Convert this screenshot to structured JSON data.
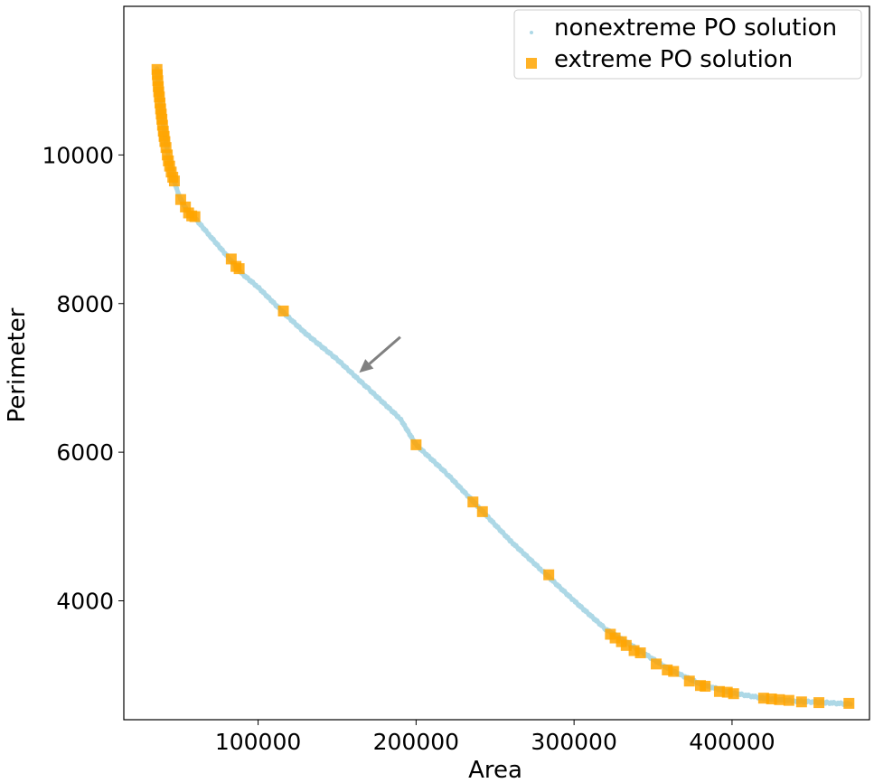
{
  "chart_data": {
    "type": "scatter",
    "xlabel": "Area",
    "ylabel": "Perimeter",
    "xlim": [
      15000,
      487000
    ],
    "ylim": [
      2400,
      12000
    ],
    "xticks": [
      100000,
      200000,
      300000,
      400000
    ],
    "xtick_labels": [
      "100000",
      "200000",
      "300000",
      "400000"
    ],
    "yticks": [
      4000,
      6000,
      8000,
      10000
    ],
    "ytick_labels": [
      "4000",
      "6000",
      "8000",
      "10000"
    ],
    "grid": false,
    "legend_position": "top-right",
    "arrow_annotation": {
      "from": [
        190000,
        7550
      ],
      "to": [
        164000,
        7070
      ]
    },
    "series": [
      {
        "name": "nonextreme PO solution",
        "marker": "point",
        "color": "#add8e6",
        "curve": [
          [
            36000,
            11150
          ],
          [
            38000,
            10700
          ],
          [
            40000,
            10400
          ],
          [
            43000,
            10000
          ],
          [
            46000,
            9700
          ],
          [
            50000,
            9450
          ],
          [
            55000,
            9250
          ],
          [
            60000,
            9150
          ],
          [
            70000,
            8900
          ],
          [
            82000,
            8600
          ],
          [
            90000,
            8400
          ],
          [
            100000,
            8220
          ],
          [
            115000,
            7900
          ],
          [
            130000,
            7600
          ],
          [
            150000,
            7250
          ],
          [
            170000,
            6850
          ],
          [
            190000,
            6450
          ],
          [
            200000,
            6100
          ],
          [
            220000,
            5700
          ],
          [
            240000,
            5250
          ],
          [
            260000,
            4800
          ],
          [
            280000,
            4400
          ],
          [
            300000,
            4000
          ],
          [
            320000,
            3620
          ],
          [
            340000,
            3350
          ],
          [
            360000,
            3080
          ],
          [
            380000,
            2880
          ],
          [
            400000,
            2760
          ],
          [
            420000,
            2690
          ],
          [
            440000,
            2650
          ],
          [
            460000,
            2630
          ],
          [
            475000,
            2610
          ]
        ]
      },
      {
        "name": "extreme PO solution",
        "marker": "square",
        "color": "#ffa500",
        "points": [
          [
            36000,
            11150
          ],
          [
            36200,
            11080
          ],
          [
            36500,
            11000
          ],
          [
            36800,
            10920
          ],
          [
            37100,
            10850
          ],
          [
            37500,
            10780
          ],
          [
            37900,
            10700
          ],
          [
            38300,
            10620
          ],
          [
            38700,
            10550
          ],
          [
            39100,
            10480
          ],
          [
            39500,
            10400
          ],
          [
            40000,
            10320
          ],
          [
            40500,
            10250
          ],
          [
            41000,
            10180
          ],
          [
            41700,
            10100
          ],
          [
            42500,
            10000
          ],
          [
            43200,
            9920
          ],
          [
            44000,
            9850
          ],
          [
            45000,
            9770
          ],
          [
            46000,
            9700
          ],
          [
            47000,
            9650
          ],
          [
            51000,
            9400
          ],
          [
            54000,
            9300
          ],
          [
            56000,
            9220
          ],
          [
            58000,
            9180
          ],
          [
            60000,
            9170
          ],
          [
            83000,
            8600
          ],
          [
            86000,
            8500
          ],
          [
            88000,
            8470
          ],
          [
            116000,
            7900
          ],
          [
            200000,
            6100
          ],
          [
            236000,
            5330
          ],
          [
            242000,
            5200
          ],
          [
            284000,
            4350
          ],
          [
            323000,
            3550
          ],
          [
            326000,
            3500
          ],
          [
            330000,
            3450
          ],
          [
            333000,
            3400
          ],
          [
            338000,
            3330
          ],
          [
            342000,
            3300
          ],
          [
            352000,
            3150
          ],
          [
            359000,
            3070
          ],
          [
            363000,
            3050
          ],
          [
            373000,
            2920
          ],
          [
            380000,
            2860
          ],
          [
            383000,
            2850
          ],
          [
            392000,
            2780
          ],
          [
            397000,
            2770
          ],
          [
            401000,
            2750
          ],
          [
            420000,
            2690
          ],
          [
            425000,
            2680
          ],
          [
            430000,
            2670
          ],
          [
            436000,
            2660
          ],
          [
            444000,
            2640
          ],
          [
            455000,
            2630
          ],
          [
            474000,
            2620
          ]
        ]
      }
    ]
  }
}
